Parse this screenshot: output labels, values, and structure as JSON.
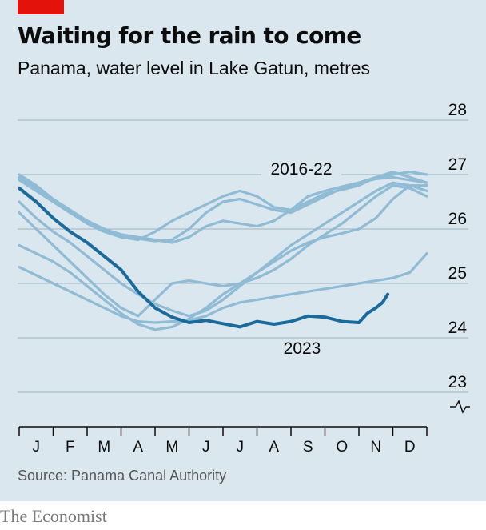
{
  "header": {
    "title": "Waiting for the rain to come",
    "subtitle": "Panama, water level in Lake Gatun, metres"
  },
  "footer": {
    "source": "Source: Panama Canal Authority",
    "brand": "The Economist"
  },
  "colors": {
    "background": "#dbe7ef",
    "highlight_series": "#1b6a9c",
    "past_series": "#8fbbd5",
    "gridline": "#9db3c2",
    "brand_tag": "#e3120b"
  },
  "chart_data": {
    "type": "line",
    "title": "Waiting for the rain to come",
    "subtitle": "Panama, water level in Lake Gatun, metres",
    "xlabel": "",
    "ylabel": "",
    "ylim": [
      23,
      28
    ],
    "y_ticks": [
      "23",
      "24",
      "25",
      "26",
      "27",
      "28"
    ],
    "y_axis_side": "right",
    "y_axis_broken_at_zero": true,
    "x_tick_labels": [
      "J",
      "F",
      "M",
      "A",
      "M",
      "J",
      "J",
      "A",
      "S",
      "O",
      "N",
      "D"
    ],
    "xlim": [
      0,
      12
    ],
    "grid": "horizontal",
    "annotations": [
      "2016-22",
      "2023"
    ],
    "x_unit_note": "x values are month of year (0 = 1 January, 12 = 31 December)",
    "series": [
      {
        "group": "2016-22",
        "highlight": false,
        "x": [
          0,
          0.5,
          1,
          1.5,
          2,
          2.5,
          3,
          3.5,
          4,
          4.5,
          5,
          5.5,
          6,
          6.5,
          7,
          7.5,
          8,
          8.5,
          9,
          9.5,
          10,
          10.5,
          11,
          11.5,
          12
        ],
        "y": [
          27.0,
          26.8,
          26.55,
          26.35,
          26.15,
          26.0,
          25.9,
          25.85,
          25.8,
          25.75,
          25.85,
          26.05,
          26.15,
          26.1,
          26.05,
          26.15,
          26.35,
          26.6,
          26.7,
          26.78,
          26.85,
          26.92,
          26.95,
          26.9,
          26.85
        ]
      },
      {
        "group": "2016-22",
        "highlight": false,
        "x": [
          0,
          0.5,
          1,
          1.5,
          2,
          2.5,
          3,
          3.5,
          4,
          4.5,
          5,
          5.5,
          6,
          6.5,
          7,
          7.5,
          8,
          8.5,
          9,
          9.5,
          10,
          10.5,
          11,
          11.5,
          12
        ],
        "y": [
          26.9,
          26.7,
          26.5,
          26.3,
          26.15,
          26.0,
          25.88,
          25.82,
          25.78,
          25.8,
          26.0,
          26.3,
          26.5,
          26.55,
          26.45,
          26.35,
          26.3,
          26.45,
          26.6,
          26.75,
          26.85,
          26.95,
          27.0,
          27.05,
          27.0
        ]
      },
      {
        "group": "2016-22",
        "highlight": false,
        "x": [
          0,
          0.5,
          1,
          1.5,
          2,
          2.5,
          3,
          3.5,
          4,
          4.5,
          5,
          5.5,
          6,
          6.5,
          7,
          7.5,
          8,
          8.5,
          9,
          9.5,
          10,
          10.5,
          11,
          11.5,
          12
        ],
        "y": [
          26.95,
          26.75,
          26.5,
          26.3,
          26.1,
          25.95,
          25.85,
          25.8,
          25.95,
          26.15,
          26.3,
          26.45,
          26.6,
          26.7,
          26.6,
          26.4,
          26.35,
          26.5,
          26.65,
          26.72,
          26.8,
          26.95,
          27.05,
          26.95,
          26.85
        ]
      },
      {
        "group": "2016-22",
        "highlight": false,
        "x": [
          0,
          0.5,
          1,
          1.5,
          2,
          2.5,
          3,
          3.5,
          4,
          4.5,
          5,
          5.5,
          6,
          6.5,
          7,
          7.5,
          8,
          8.5,
          9,
          9.5,
          10,
          10.5,
          11,
          11.5,
          12
        ],
        "y": [
          26.5,
          26.2,
          25.95,
          25.75,
          25.5,
          25.25,
          25.0,
          24.8,
          24.62,
          24.5,
          24.4,
          24.5,
          24.7,
          24.95,
          25.2,
          25.45,
          25.7,
          25.9,
          26.1,
          26.3,
          26.5,
          26.7,
          26.85,
          26.8,
          26.7
        ]
      },
      {
        "group": "2016-22",
        "highlight": false,
        "x": [
          0,
          0.5,
          1,
          1.5,
          2,
          2.5,
          3,
          3.5,
          4,
          4.5,
          5,
          5.5,
          6,
          6.5,
          7,
          7.5,
          8,
          8.5,
          9,
          9.5,
          10,
          10.5,
          11,
          11.5,
          12
        ],
        "y": [
          25.7,
          25.55,
          25.4,
          25.2,
          24.95,
          24.7,
          24.45,
          24.25,
          24.15,
          24.2,
          24.35,
          24.55,
          24.8,
          25.0,
          25.2,
          25.4,
          25.6,
          25.75,
          25.85,
          25.92,
          26.0,
          26.2,
          26.55,
          26.8,
          26.8
        ]
      },
      {
        "group": "2016-22",
        "highlight": false,
        "x": [
          0,
          0.5,
          1,
          1.5,
          2,
          2.5,
          3,
          3.5,
          4,
          4.5,
          5,
          5.5,
          6,
          6.5,
          7,
          7.5,
          8,
          8.5,
          9,
          9.5,
          10,
          10.5,
          11,
          11.5,
          12
        ],
        "y": [
          25.3,
          25.15,
          25.0,
          24.85,
          24.7,
          24.55,
          24.4,
          24.3,
          24.28,
          24.3,
          24.32,
          24.4,
          24.55,
          24.65,
          24.7,
          24.75,
          24.8,
          24.85,
          24.9,
          24.95,
          25.0,
          25.05,
          25.1,
          25.2,
          25.55
        ]
      },
      {
        "group": "2016-22",
        "highlight": false,
        "x": [
          0,
          0.5,
          1,
          1.5,
          2,
          2.5,
          3,
          3.5,
          4,
          4.5,
          5,
          5.5,
          6,
          6.5,
          7,
          7.5,
          8,
          8.5,
          9,
          9.5,
          10,
          10.5,
          11,
          11.5,
          12
        ],
        "y": [
          26.3,
          26.0,
          25.7,
          25.4,
          25.1,
          24.8,
          24.55,
          24.4,
          24.7,
          25.0,
          25.05,
          25.0,
          24.95,
          25.0,
          25.1,
          25.25,
          25.45,
          25.7,
          25.9,
          26.1,
          26.35,
          26.6,
          26.8,
          26.75,
          26.6
        ]
      },
      {
        "group": "2023",
        "highlight": true,
        "x": [
          0,
          0.5,
          1,
          1.5,
          2,
          2.5,
          3,
          3.5,
          4,
          4.5,
          5,
          5.5,
          6,
          6.5,
          7,
          7.5,
          8,
          8.5,
          9,
          9.5,
          10,
          10.25,
          10.5,
          10.7,
          10.85
        ],
        "y": [
          26.75,
          26.5,
          26.2,
          25.95,
          25.75,
          25.5,
          25.25,
          24.85,
          24.55,
          24.38,
          24.28,
          24.32,
          24.26,
          24.2,
          24.3,
          24.25,
          24.3,
          24.4,
          24.38,
          24.3,
          24.28,
          24.45,
          24.55,
          24.65,
          24.8
        ]
      }
    ]
  }
}
